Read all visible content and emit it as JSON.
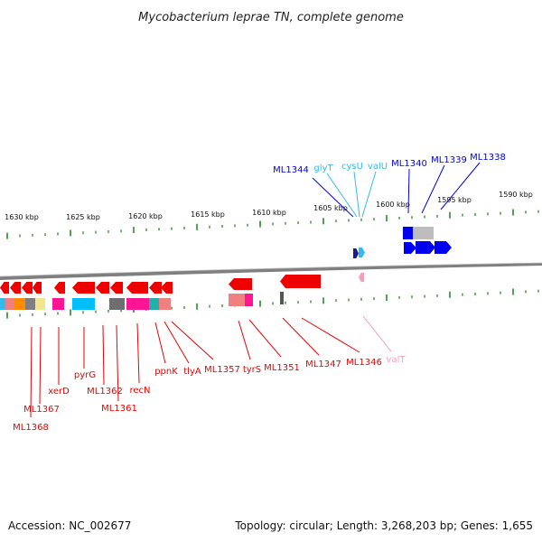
{
  "title": "Mycobacterium leprae TN, complete genome",
  "accession_text": "Accession: NC_002677",
  "topology_text": "Topology: circular; Length: 3,268,203 bp; Genes: 1,655",
  "colors": {
    "forward_gene": "#0000ee",
    "forward_trna": "#33bbee",
    "reverse_gene": "#ee0000",
    "reverse_trna": "#f4a0b8",
    "tick": "#2a8a2a",
    "backbone": "#777777"
  },
  "kbp_ticks": [
    "1630 kbp",
    "1625 kbp",
    "1620 kbp",
    "1615 kbp",
    "1610 kbp",
    "1605 kbp",
    "1600 kbp",
    "1595 kbp",
    "1590 kbp"
  ],
  "upper_labels": [
    {
      "name": "ML1344",
      "kind": "gene"
    },
    {
      "name": "glyT",
      "kind": "trna"
    },
    {
      "name": "cysU",
      "kind": "trna"
    },
    {
      "name": "valU",
      "kind": "trna"
    },
    {
      "name": "ML1340",
      "kind": "gene"
    },
    {
      "name": "ML1339",
      "kind": "gene"
    },
    {
      "name": "ML1338",
      "kind": "gene"
    }
  ],
  "lower_labels": [
    {
      "name": "ML1368",
      "kind": "gene"
    },
    {
      "name": "ML1367",
      "kind": "gene"
    },
    {
      "name": "xerD",
      "kind": "gene"
    },
    {
      "name": "pyrG",
      "kind": "gene"
    },
    {
      "name": "ML1362",
      "kind": "gene"
    },
    {
      "name": "ML1361",
      "kind": "gene"
    },
    {
      "name": "recN",
      "kind": "gene"
    },
    {
      "name": "ppnK",
      "kind": "gene"
    },
    {
      "name": "tlyA",
      "kind": "gene"
    },
    {
      "name": "ML1357",
      "kind": "gene"
    },
    {
      "name": "tyrS",
      "kind": "gene"
    },
    {
      "name": "ML1351",
      "kind": "gene"
    },
    {
      "name": "ML1347",
      "kind": "gene"
    },
    {
      "name": "ML1346",
      "kind": "gene"
    },
    {
      "name": "valT",
      "kind": "trna"
    }
  ]
}
